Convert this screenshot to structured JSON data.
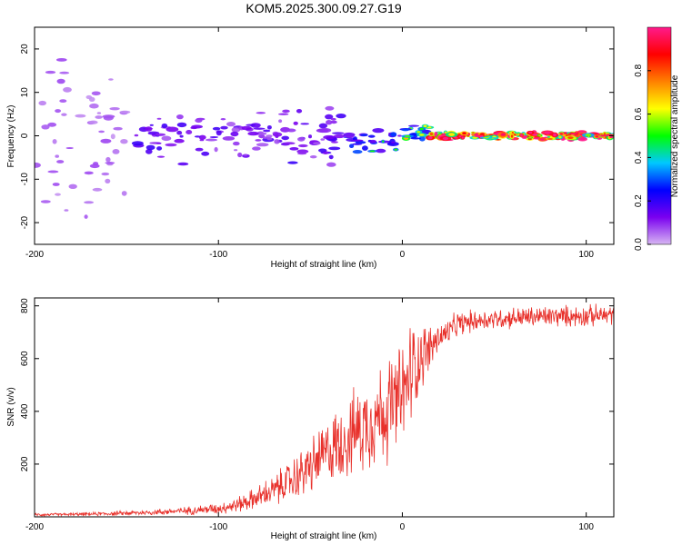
{
  "title": "KOM5.2025.300.09.27.G19",
  "colors": {
    "snr_line": "#e8302a",
    "colormap": [
      "#d7b6f2",
      "#7a00f0",
      "#0000ff",
      "#00c8ff",
      "#00ff00",
      "#ffff00",
      "#ff8000",
      "#ff0000",
      "#ff1a8c"
    ]
  },
  "chart_data": [
    {
      "type": "heatmap",
      "xlabel": "Height of straight line (km)",
      "ylabel": "Frequency (Hz)",
      "xlim": [
        -200,
        115
      ],
      "ylim": [
        -25,
        25
      ],
      "xticks": [
        -200,
        -100,
        0,
        100
      ],
      "xtick_labels": [
        "-200",
        "-100",
        "0",
        "100"
      ],
      "yticks": [
        -20,
        -10,
        0,
        10,
        20
      ],
      "ytick_labels": [
        "-20",
        "-10",
        "0",
        "10",
        "20"
      ],
      "colorbar": {
        "label": "Normalized spectral amplitude",
        "range": [
          0,
          1
        ],
        "ticks": [
          0.0,
          0.2,
          0.4,
          0.6,
          0.8
        ],
        "tick_labels": [
          "0.0",
          "0.2",
          "0.4",
          "0.6",
          "0.8"
        ]
      },
      "regions": [
        {
          "x": [
            -200,
            -150
          ],
          "freq_center": 0,
          "freq_spread": 24,
          "amplitude": 0.06
        },
        {
          "x": [
            -145,
            -30
          ],
          "freq_center": 0,
          "freq_spread": 7,
          "amplitude": 0.15
        },
        {
          "x": [
            -30,
            0
          ],
          "freq_center": -1,
          "freq_spread": 3,
          "amplitude": 0.25
        },
        {
          "x": [
            0,
            15
          ],
          "freq_center": 1,
          "freq_spread": 2,
          "amplitude": 0.4
        },
        {
          "x": [
            15,
            115
          ],
          "freq_center": 0,
          "freq_spread": 1,
          "amplitude": 0.85
        }
      ]
    },
    {
      "type": "line",
      "xlabel": "Height of straight line (km)",
      "ylabel": "SNR (v/v)",
      "xlim": [
        -200,
        115
      ],
      "ylim": [
        0,
        830
      ],
      "xticks": [
        -200,
        -100,
        0,
        100
      ],
      "xtick_labels": [
        "-200",
        "-100",
        "0",
        "100"
      ],
      "yticks": [
        200,
        400,
        600,
        800
      ],
      "ytick_labels": [
        "200",
        "400",
        "600",
        "800"
      ],
      "series": [
        {
          "x": [
            -200,
            -180,
            -160,
            -140,
            -120,
            -100,
            -90,
            -80,
            -70,
            -60,
            -50,
            -40,
            -30,
            -20,
            -10,
            0,
            5,
            10,
            15,
            20,
            25,
            30,
            40,
            50,
            60,
            80,
            100,
            115
          ],
          "y": [
            8,
            9,
            12,
            16,
            22,
            32,
            45,
            70,
            100,
            140,
            190,
            250,
            300,
            350,
            400,
            450,
            560,
            610,
            640,
            680,
            700,
            730,
            745,
            750,
            755,
            760,
            762,
            765
          ],
          "noise": [
            5,
            5,
            7,
            9,
            12,
            18,
            25,
            35,
            50,
            70,
            90,
            110,
            130,
            150,
            170,
            180,
            170,
            110,
            80,
            50,
            45,
            40,
            35,
            35,
            35,
            35,
            35,
            35
          ]
        }
      ]
    }
  ]
}
